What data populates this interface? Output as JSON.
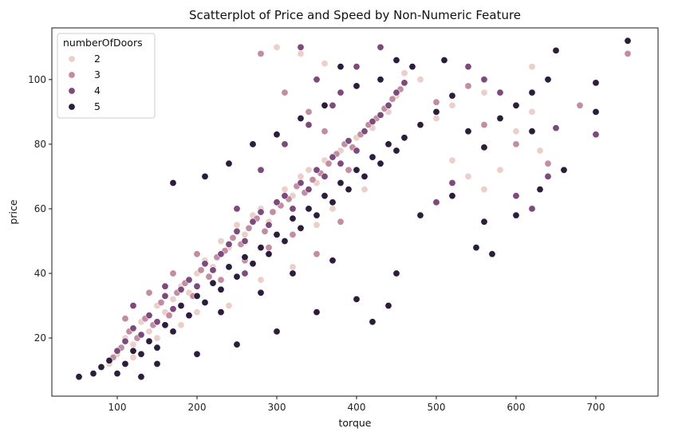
{
  "chart_data": {
    "type": "scatter",
    "title": "Scatterplot of Price and Speed by Non-Numeric Feature",
    "xlabel": "torque",
    "ylabel": "price",
    "xlim": [
      18,
      778
    ],
    "ylim": [
      2,
      116
    ],
    "xticks": [
      100,
      200,
      300,
      400,
      500,
      600,
      700
    ],
    "yticks": [
      20,
      40,
      60,
      80,
      100
    ],
    "grid": false,
    "legend": {
      "title": "numberOfDoors",
      "placement": "top-left",
      "entries": [
        {
          "label": "2",
          "color": "#ebcfca"
        },
        {
          "label": "3",
          "color": "#c28ca3"
        },
        {
          "label": "4",
          "color": "#7d4a7c"
        },
        {
          "label": "5",
          "color": "#2c1d3c"
        }
      ]
    },
    "series": [
      {
        "name": "2",
        "color": "#ebcfca",
        "points": [
          [
            90,
            12
          ],
          [
            100,
            15
          ],
          [
            110,
            20
          ],
          [
            120,
            18
          ],
          [
            130,
            25
          ],
          [
            140,
            22
          ],
          [
            150,
            30
          ],
          [
            160,
            28
          ],
          [
            170,
            32
          ],
          [
            180,
            36
          ],
          [
            190,
            34
          ],
          [
            200,
            40
          ],
          [
            210,
            44
          ],
          [
            220,
            42
          ],
          [
            230,
            50
          ],
          [
            240,
            48
          ],
          [
            250,
            55
          ],
          [
            260,
            52
          ],
          [
            270,
            58
          ],
          [
            280,
            60
          ],
          [
            290,
            56
          ],
          [
            300,
            62
          ],
          [
            310,
            66
          ],
          [
            320,
            64
          ],
          [
            330,
            70
          ],
          [
            340,
            72
          ],
          [
            350,
            68
          ],
          [
            360,
            75
          ],
          [
            380,
            78
          ],
          [
            400,
            82
          ],
          [
            420,
            85
          ],
          [
            440,
            90
          ],
          [
            450,
            95
          ],
          [
            460,
            102
          ],
          [
            480,
            100
          ],
          [
            500,
            88
          ],
          [
            520,
            75
          ],
          [
            540,
            70
          ],
          [
            560,
            66
          ],
          [
            580,
            72
          ],
          [
            600,
            84
          ],
          [
            620,
            90
          ],
          [
            630,
            78
          ],
          [
            300,
            110
          ],
          [
            330,
            108
          ],
          [
            360,
            105
          ],
          [
            200,
            28
          ],
          [
            240,
            30
          ],
          [
            280,
            38
          ],
          [
            320,
            42
          ],
          [
            120,
            14
          ],
          [
            150,
            20
          ],
          [
            180,
            24
          ],
          [
            350,
            55
          ],
          [
            370,
            60
          ],
          [
            410,
            66
          ],
          [
            430,
            74
          ],
          [
            520,
            92
          ],
          [
            560,
            96
          ],
          [
            620,
            104
          ]
        ]
      },
      {
        "name": "3",
        "color": "#c28ca3",
        "points": [
          [
            95,
            14
          ],
          [
            105,
            17
          ],
          [
            115,
            22
          ],
          [
            125,
            20
          ],
          [
            135,
            26
          ],
          [
            145,
            24
          ],
          [
            155,
            31
          ],
          [
            165,
            27
          ],
          [
            175,
            34
          ],
          [
            185,
            37
          ],
          [
            195,
            33
          ],
          [
            205,
            41
          ],
          [
            215,
            39
          ],
          [
            225,
            45
          ],
          [
            235,
            47
          ],
          [
            245,
            51
          ],
          [
            255,
            49
          ],
          [
            265,
            54
          ],
          [
            275,
            57
          ],
          [
            285,
            53
          ],
          [
            295,
            59
          ],
          [
            305,
            61
          ],
          [
            315,
            63
          ],
          [
            325,
            67
          ],
          [
            335,
            65
          ],
          [
            345,
            69
          ],
          [
            355,
            71
          ],
          [
            365,
            74
          ],
          [
            375,
            77
          ],
          [
            385,
            80
          ],
          [
            395,
            79
          ],
          [
            405,
            83
          ],
          [
            415,
            86
          ],
          [
            425,
            88
          ],
          [
            435,
            91
          ],
          [
            445,
            94
          ],
          [
            455,
            97
          ],
          [
            500,
            93
          ],
          [
            540,
            98
          ],
          [
            560,
            86
          ],
          [
            600,
            80
          ],
          [
            640,
            74
          ],
          [
            680,
            92
          ],
          [
            700,
            90
          ],
          [
            740,
            108
          ],
          [
            280,
            108
          ],
          [
            310,
            96
          ],
          [
            340,
            90
          ],
          [
            360,
            84
          ],
          [
            390,
            72
          ],
          [
            110,
            26
          ],
          [
            140,
            34
          ],
          [
            170,
            40
          ],
          [
            200,
            46
          ],
          [
            230,
            38
          ],
          [
            260,
            44
          ],
          [
            290,
            48
          ],
          [
            320,
            52
          ],
          [
            350,
            46
          ],
          [
            380,
            56
          ]
        ]
      },
      {
        "name": "4",
        "color": "#7d4a7c",
        "points": [
          [
            100,
            16
          ],
          [
            110,
            19
          ],
          [
            120,
            23
          ],
          [
            130,
            21
          ],
          [
            140,
            27
          ],
          [
            150,
            25
          ],
          [
            160,
            33
          ],
          [
            170,
            29
          ],
          [
            180,
            35
          ],
          [
            190,
            38
          ],
          [
            200,
            36
          ],
          [
            210,
            43
          ],
          [
            220,
            41
          ],
          [
            230,
            46
          ],
          [
            240,
            49
          ],
          [
            250,
            53
          ],
          [
            260,
            50
          ],
          [
            270,
            56
          ],
          [
            280,
            59
          ],
          [
            290,
            55
          ],
          [
            300,
            62
          ],
          [
            310,
            64
          ],
          [
            320,
            60
          ],
          [
            330,
            68
          ],
          [
            340,
            66
          ],
          [
            350,
            72
          ],
          [
            360,
            70
          ],
          [
            370,
            76
          ],
          [
            380,
            74
          ],
          [
            390,
            81
          ],
          [
            400,
            78
          ],
          [
            410,
            84
          ],
          [
            420,
            87
          ],
          [
            430,
            89
          ],
          [
            440,
            92
          ],
          [
            450,
            96
          ],
          [
            460,
            99
          ],
          [
            500,
            62
          ],
          [
            520,
            68
          ],
          [
            540,
            104
          ],
          [
            560,
            100
          ],
          [
            580,
            96
          ],
          [
            600,
            64
          ],
          [
            620,
            60
          ],
          [
            640,
            70
          ],
          [
            650,
            85
          ],
          [
            700,
            83
          ],
          [
            430,
            110
          ],
          [
            400,
            104
          ],
          [
            380,
            96
          ],
          [
            250,
            60
          ],
          [
            280,
            72
          ],
          [
            310,
            80
          ],
          [
            340,
            86
          ],
          [
            370,
            92
          ],
          [
            330,
            110
          ],
          [
            350,
            100
          ],
          [
            120,
            30
          ],
          [
            160,
            36
          ],
          [
            260,
            40
          ]
        ]
      },
      {
        "name": "5",
        "color": "#2c1d3c",
        "points": [
          [
            52,
            8
          ],
          [
            70,
            9
          ],
          [
            80,
            11
          ],
          [
            90,
            13
          ],
          [
            100,
            9
          ],
          [
            110,
            12
          ],
          [
            120,
            16
          ],
          [
            130,
            15
          ],
          [
            140,
            19
          ],
          [
            150,
            17
          ],
          [
            160,
            24
          ],
          [
            170,
            22
          ],
          [
            180,
            30
          ],
          [
            190,
            27
          ],
          [
            200,
            33
          ],
          [
            210,
            31
          ],
          [
            220,
            37
          ],
          [
            230,
            35
          ],
          [
            240,
            42
          ],
          [
            250,
            39
          ],
          [
            260,
            45
          ],
          [
            270,
            43
          ],
          [
            280,
            48
          ],
          [
            290,
            46
          ],
          [
            300,
            52
          ],
          [
            310,
            50
          ],
          [
            320,
            57
          ],
          [
            330,
            54
          ],
          [
            340,
            60
          ],
          [
            350,
            58
          ],
          [
            360,
            64
          ],
          [
            370,
            62
          ],
          [
            380,
            68
          ],
          [
            390,
            66
          ],
          [
            400,
            72
          ],
          [
            410,
            70
          ],
          [
            420,
            76
          ],
          [
            430,
            74
          ],
          [
            440,
            80
          ],
          [
            450,
            78
          ],
          [
            460,
            82
          ],
          [
            480,
            86
          ],
          [
            500,
            90
          ],
          [
            520,
            95
          ],
          [
            540,
            84
          ],
          [
            560,
            79
          ],
          [
            580,
            88
          ],
          [
            600,
            92
          ],
          [
            620,
            96
          ],
          [
            640,
            100
          ],
          [
            650,
            109
          ],
          [
            700,
            99
          ],
          [
            740,
            112
          ],
          [
            170,
            68
          ],
          [
            210,
            70
          ],
          [
            240,
            74
          ],
          [
            270,
            80
          ],
          [
            300,
            83
          ],
          [
            330,
            88
          ],
          [
            360,
            92
          ],
          [
            400,
            98
          ],
          [
            430,
            100
          ],
          [
            470,
            104
          ],
          [
            510,
            106
          ],
          [
            550,
            48
          ],
          [
            570,
            46
          ],
          [
            420,
            25
          ],
          [
            440,
            30
          ],
          [
            400,
            32
          ],
          [
            350,
            28
          ],
          [
            300,
            22
          ],
          [
            250,
            18
          ],
          [
            200,
            15
          ],
          [
            150,
            12
          ],
          [
            130,
            8
          ],
          [
            230,
            28
          ],
          [
            280,
            34
          ],
          [
            320,
            40
          ],
          [
            370,
            44
          ],
          [
            450,
            40
          ],
          [
            480,
            58
          ],
          [
            520,
            64
          ],
          [
            560,
            56
          ],
          [
            600,
            58
          ],
          [
            630,
            66
          ],
          [
            660,
            72
          ],
          [
            700,
            90
          ],
          [
            380,
            104
          ],
          [
            450,
            106
          ],
          [
            620,
            84
          ]
        ]
      }
    ]
  }
}
